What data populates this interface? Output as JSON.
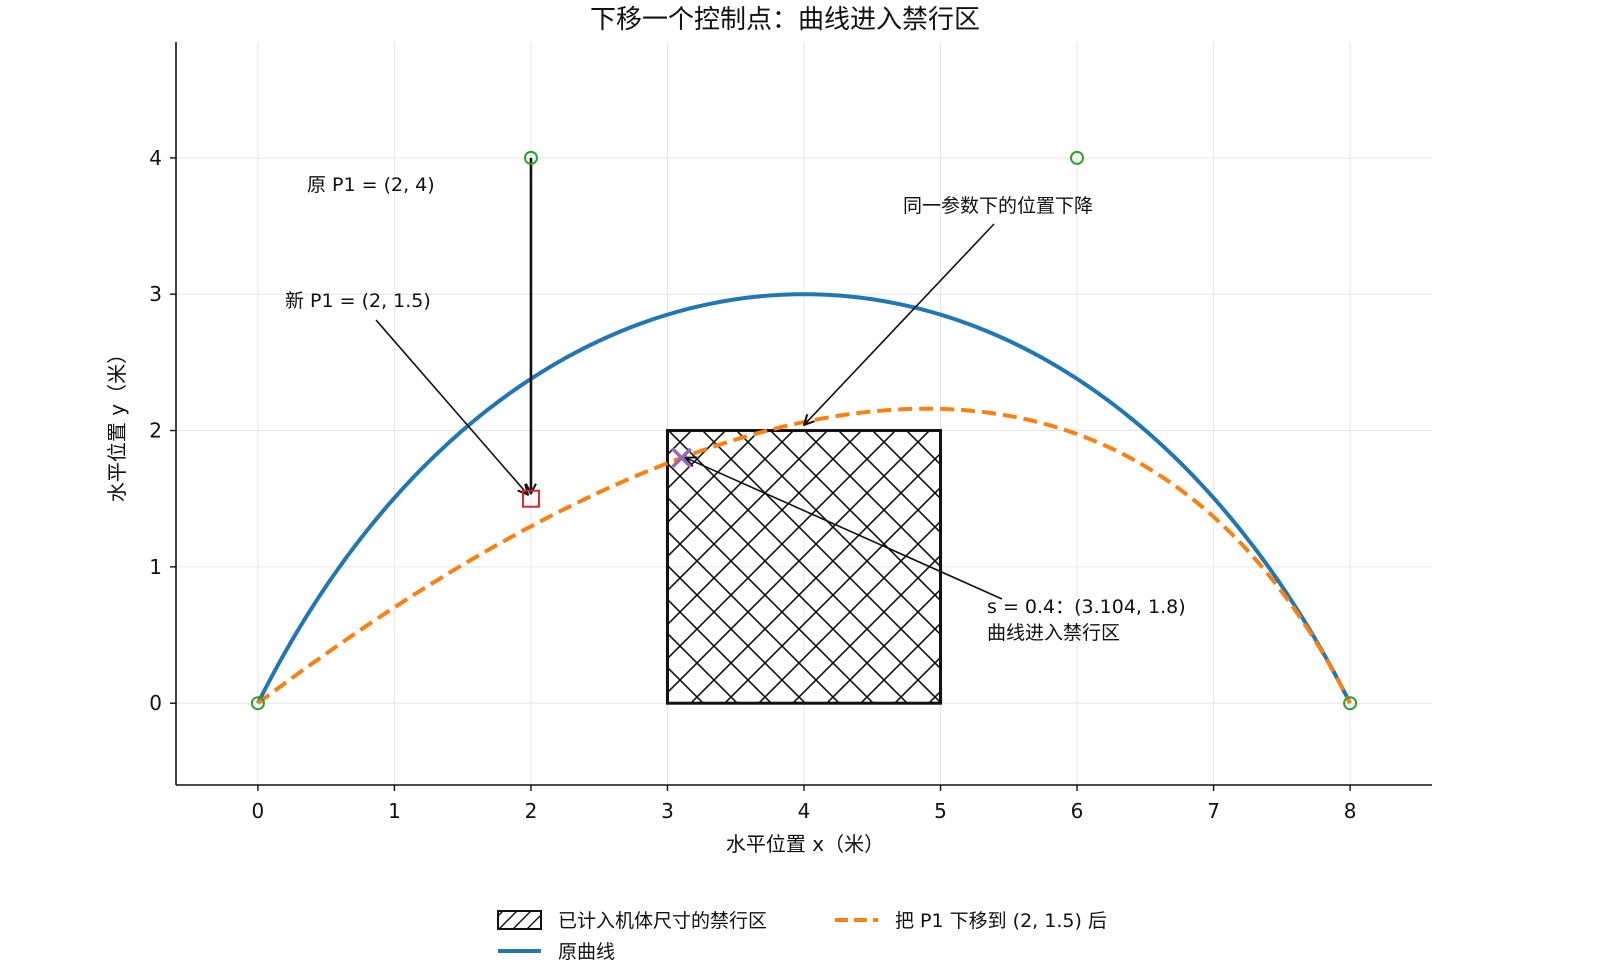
{
  "chart_data": {
    "type": "line",
    "title": "下移一个控制点：曲线进入禁行区",
    "xlabel": "水平位置 x（米）",
    "ylabel": "水平位置 y（米）",
    "xlim": [
      -0.6,
      8.6
    ],
    "ylim": [
      -0.6,
      4.85
    ],
    "xticks": [
      0,
      1,
      2,
      3,
      4,
      5,
      6,
      7,
      8
    ],
    "yticks": [
      0,
      1,
      2,
      3,
      4
    ],
    "grid": true,
    "legend_position": "bottom-center",
    "series": [
      {
        "name": "原曲线",
        "color": "#1f77b4",
        "style": "solid",
        "control_points": [
          [
            0,
            0
          ],
          [
            2,
            4
          ],
          [
            6,
            4
          ],
          [
            8,
            0
          ]
        ]
      },
      {
        "name": "把 P1 下移到 (2, 1.5) 后",
        "color": "#ff7f0e",
        "style": "dashed",
        "control_points": [
          [
            0,
            0
          ],
          [
            2,
            1.5
          ],
          [
            6,
            4
          ],
          [
            8,
            0
          ]
        ]
      }
    ],
    "control_point_markers": [
      [
        0,
        0
      ],
      [
        2,
        4
      ],
      [
        6,
        4
      ],
      [
        8,
        0
      ]
    ],
    "control_point_color": "#2ca02c",
    "new_point": {
      "x": 2,
      "y": 1.5,
      "color": "#d62728"
    },
    "forbidden_zone": {
      "name": "已计入机体尺寸的禁行区",
      "x": [
        3,
        5
      ],
      "y": [
        0,
        2
      ]
    },
    "intrusion_point": {
      "x": 3.104,
      "y": 1.8,
      "color": "#9467bd"
    },
    "annotations": {
      "old_p1": "原 P1 = (2, 4)",
      "new_p1": "新 P1 = (2, 1.5)",
      "drop": "同一参数下的位置下降",
      "intrusion_line1": "s = 0.4：(3.104, 1.8)",
      "intrusion_line2": "曲线进入禁行区"
    }
  }
}
